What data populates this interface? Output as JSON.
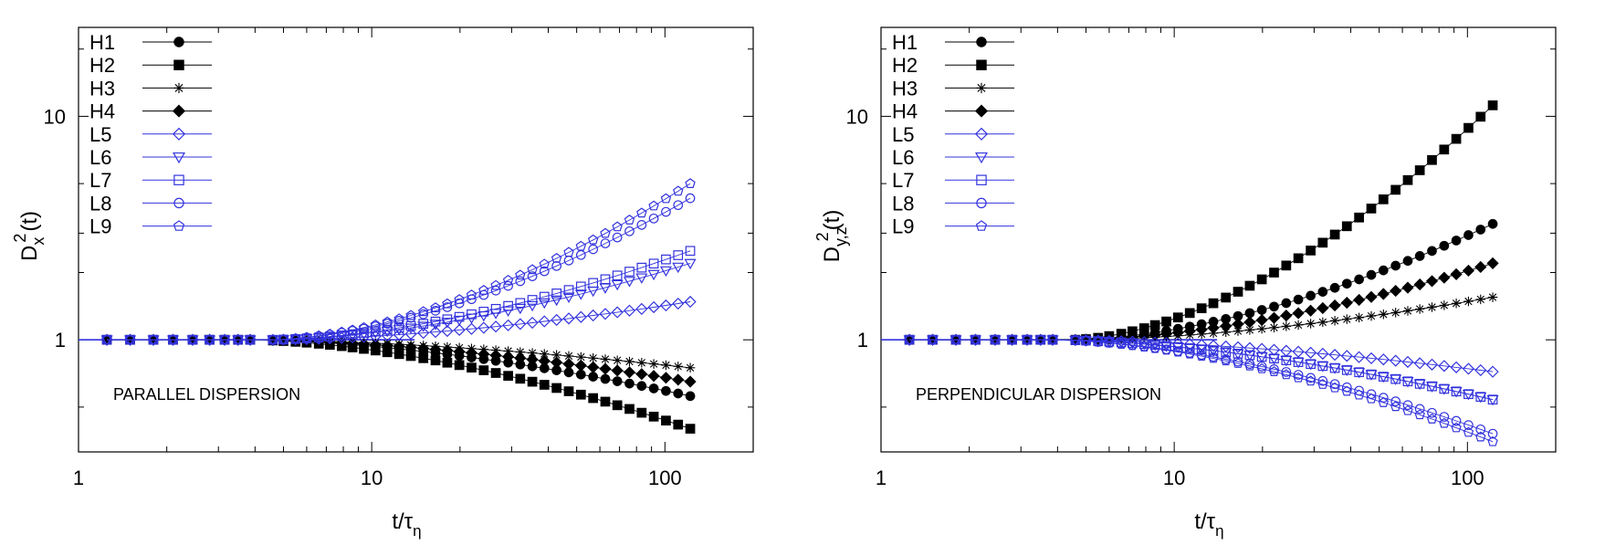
{
  "chart_data": [
    {
      "type": "line",
      "id": "parallel",
      "annotation": "PARALLEL DISPERSION",
      "xlabel": "t/τ",
      "xlabel_sub": "η",
      "ylabel": "D",
      "ylabel_sub": "x",
      "ylabel_sup": "2",
      "ylabel_tail": "(t)",
      "xscale": "log",
      "yscale": "log",
      "xlim": [
        1,
        200
      ],
      "ylim": [
        0.315,
        25
      ],
      "xticks": [
        {
          "value": 1,
          "label": "1"
        },
        {
          "value": 10,
          "label": "10"
        },
        {
          "value": 100,
          "label": "100"
        }
      ],
      "yticks": [
        {
          "value": 1,
          "label": "1"
        },
        {
          "value": 10,
          "label": "10"
        }
      ],
      "legend_position": "top-left",
      "series": [
        {
          "name": "H1",
          "color": "#000000",
          "marker": "circle",
          "filled": true,
          "final": 0.56
        },
        {
          "name": "H2",
          "color": "#000000",
          "marker": "square",
          "filled": true,
          "final": 0.4
        },
        {
          "name": "H3",
          "color": "#000000",
          "marker": "star",
          "filled": true,
          "final": 0.75
        },
        {
          "name": "H4",
          "color": "#000000",
          "marker": "diamond",
          "filled": true,
          "final": 0.65
        },
        {
          "name": "L5",
          "color": "#3333dd",
          "marker": "diamond",
          "filled": false,
          "final": 1.48
        },
        {
          "name": "L6",
          "color": "#3333dd",
          "marker": "triangle",
          "filled": false,
          "final": 2.2
        },
        {
          "name": "L7",
          "color": "#3333dd",
          "marker": "square",
          "filled": false,
          "final": 2.5
        },
        {
          "name": "L8",
          "color": "#3333dd",
          "marker": "circle",
          "filled": false,
          "final": 4.3
        },
        {
          "name": "L9",
          "color": "#3333dd",
          "marker": "pentagon",
          "filled": false,
          "final": 5.0
        }
      ]
    },
    {
      "type": "line",
      "id": "perpendicular",
      "annotation": "PERPENDICULAR DISPERSION",
      "xlabel": "t/τ",
      "xlabel_sub": "η",
      "ylabel": "D",
      "ylabel_sub": "y,z",
      "ylabel_sup": "2",
      "ylabel_tail": "(t)",
      "xscale": "log",
      "yscale": "log",
      "xlim": [
        1,
        200
      ],
      "ylim": [
        0.315,
        25
      ],
      "xticks": [
        {
          "value": 1,
          "label": "1"
        },
        {
          "value": 10,
          "label": "10"
        },
        {
          "value": 100,
          "label": "100"
        }
      ],
      "yticks": [
        {
          "value": 1,
          "label": "1"
        },
        {
          "value": 10,
          "label": "10"
        }
      ],
      "legend_position": "top-left",
      "series": [
        {
          "name": "H1",
          "color": "#000000",
          "marker": "circle",
          "filled": true,
          "final": 3.3
        },
        {
          "name": "H2",
          "color": "#000000",
          "marker": "square",
          "filled": true,
          "final": 11.2
        },
        {
          "name": "H3",
          "color": "#000000",
          "marker": "star",
          "filled": true,
          "final": 1.55
        },
        {
          "name": "H4",
          "color": "#000000",
          "marker": "diamond",
          "filled": true,
          "final": 2.2
        },
        {
          "name": "L5",
          "color": "#3333dd",
          "marker": "diamond",
          "filled": false,
          "final": 0.72
        },
        {
          "name": "L6",
          "color": "#3333dd",
          "marker": "triangle",
          "filled": false,
          "final": 0.54
        },
        {
          "name": "L7",
          "color": "#3333dd",
          "marker": "square",
          "filled": false,
          "final": 0.54
        },
        {
          "name": "L8",
          "color": "#3333dd",
          "marker": "circle",
          "filled": false,
          "final": 0.38
        },
        {
          "name": "L9",
          "color": "#3333dd",
          "marker": "pentagon",
          "filled": false,
          "final": 0.35
        }
      ]
    }
  ],
  "x_samples": [
    1.25,
    1.5,
    1.8,
    2.1,
    2.45,
    2.8,
    3.15,
    3.5,
    3.85,
    4.6,
    5.0,
    5.5,
    6.0,
    6.6,
    7.2,
    7.9,
    8.6,
    9.4,
    10.3,
    11.3,
    12.4,
    13.6,
    15,
    16.5,
    18.1,
    19.9,
    21.9,
    24.1,
    26.5,
    29.2,
    32.1,
    35.3,
    38.8,
    42.7,
    47,
    51.7,
    56.9,
    62.6,
    68.8,
    75.7,
    83.3,
    91.6,
    100.8,
    110.9,
    122
  ]
}
